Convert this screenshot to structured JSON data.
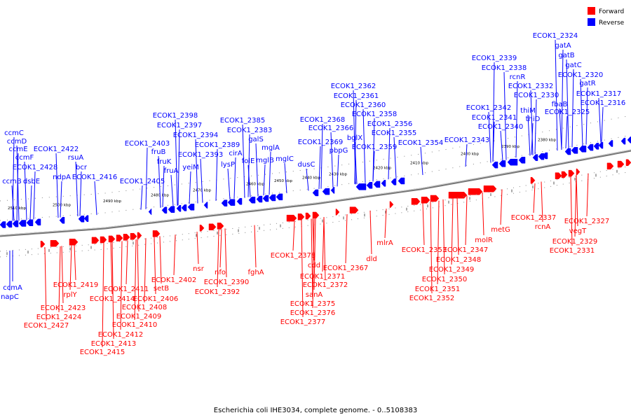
{
  "title": "Escherichia coli IHE3034, complete genome. - 0..5108383",
  "legend": [
    {
      "label": "Forward",
      "color": "#ff0000"
    },
    {
      "label": "Reverse",
      "color": "#0000ff"
    }
  ],
  "colors": {
    "forward": "#ff0000",
    "reverse": "#0000ff",
    "backbone": "#666666"
  },
  "ticks": [
    {
      "label": "2380 kbp"
    },
    {
      "label": "2390 kbp"
    },
    {
      "label": "2400 kbp"
    },
    {
      "label": "2410 kbp"
    },
    {
      "label": "2420 kbp"
    },
    {
      "label": "2430 kbp"
    },
    {
      "label": "2440 kbp"
    },
    {
      "label": "2450 kbp"
    },
    {
      "label": "2460 kbp"
    },
    {
      "label": "2470 kbp"
    },
    {
      "label": "2480 kbp"
    },
    {
      "label": "2490 kbp"
    },
    {
      "label": "2500 kbp"
    },
    {
      "label": "2510 kbp"
    }
  ],
  "reverse_labels": [
    "ccmC",
    "ccmD",
    "ccmE",
    "ccmF",
    "ECOK1_2428",
    "ccmB",
    "dsbE",
    "ECOK1_2422",
    "ndpA",
    "rsuA",
    "bcr",
    "ECOK1_2416",
    "ECOK1_2403",
    "fruB",
    "fruK",
    "fruA",
    "ECOK1_2405",
    "ECOK1_2398",
    "ECOK1_2397",
    "ECOK1_2394",
    "yeiM",
    "ECOK1_2393",
    "ECOK1_2389",
    "lysP",
    "cirA",
    "ECOK1_2385",
    "ECOK1_2383",
    "galS",
    "mglA",
    "folE",
    "mglB",
    "mglC",
    "ECOK1_2368",
    "ECOK1_2366",
    "ECOK1_2369",
    "dusC",
    "pbpG",
    "ECOK1_2362",
    "ECOK1_2361",
    "ECOK1_2360",
    "ECOK1_2358",
    "bglX",
    "ECOK1_2356",
    "ECOK1_2355",
    "ECOK1_2359",
    "ECOK1_2354",
    "ECOK1_2343",
    "ECOK1_2342",
    "ECOK1_2341",
    "ECOK1_2340",
    "ECOK1_2339",
    "ECOK1_2338",
    "rcnR",
    "ECOK1_2332",
    "ECOK1_2330",
    "thiM",
    "thiD",
    "fbaB",
    "ECOK1_2325",
    "ECOK1_2324",
    "gatA",
    "gatB",
    "gatC",
    "ECOK1_2320",
    "gatR",
    "ECOK1_2317",
    "ECOK1_2316",
    "ccmA",
    "napC"
  ],
  "forward_labels": [
    "ECOK1_2419",
    "rplY",
    "ECOK1_2423",
    "ECOK1_2424",
    "ECOK1_2427",
    "ECOK1_2411",
    "ECOK1_2414",
    "ECOK1_2412",
    "ECOK1_2413",
    "ECOK1_2415",
    "setB",
    "ECOK1_2402",
    "ECOK1_2406",
    "ECOK1_2408",
    "ECOK1_2409",
    "ECOK1_2410",
    "nsr",
    "nfo",
    "ECOK1_2390",
    "ECOK1_2392",
    "fghA",
    "ECOK1_2378",
    "cdd",
    "ECOK1_2371",
    "ECOK1_2372",
    "sanA",
    "ECOK1_2375",
    "ECOK1_2376",
    "ECOK1_2377",
    "ECOK1_2367",
    "dld",
    "mlrA",
    "ECOK1_2353",
    "ECOK1_2347",
    "ECOK1_2348",
    "ECOK1_2349",
    "ECOK1_2350",
    "ECOK1_2351",
    "ECOK1_2352",
    "metG",
    "molR",
    "ECOK1_2337",
    "rcnA",
    "ECOK1_2327",
    "vegT",
    "ECOK1_2329",
    "ECOK1_2331"
  ]
}
